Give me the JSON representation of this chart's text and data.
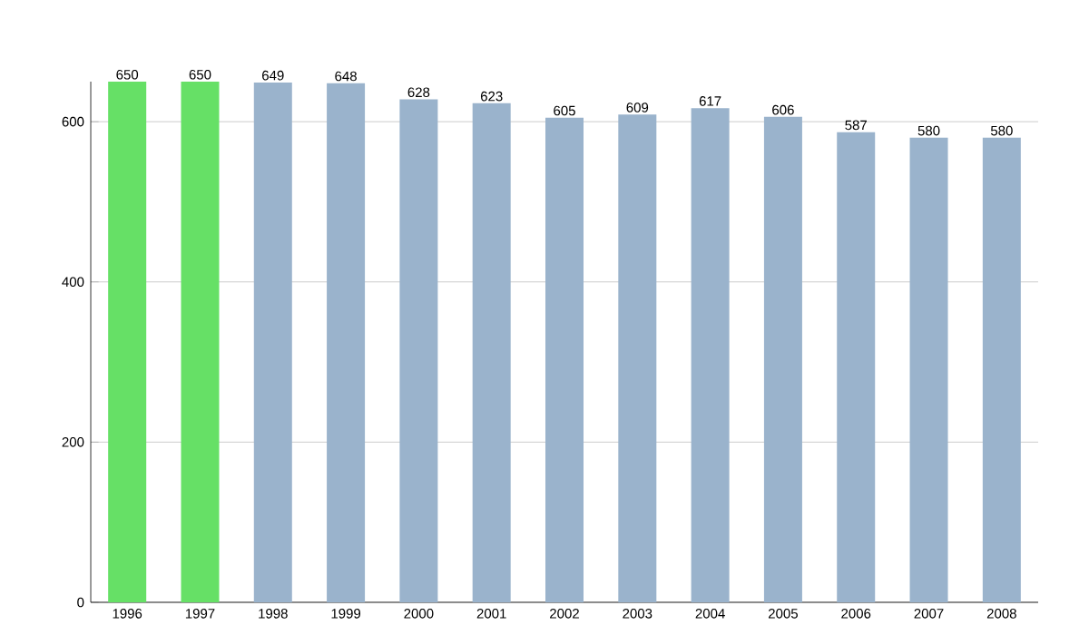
{
  "chart_data": {
    "type": "bar",
    "categories": [
      "1996",
      "1997",
      "1998",
      "1999",
      "2000",
      "2001",
      "2002",
      "2003",
      "2004",
      "2005",
      "2006",
      "2007",
      "2008"
    ],
    "values": [
      650,
      650,
      649,
      648,
      628,
      623,
      605,
      609,
      617,
      606,
      587,
      580,
      580
    ],
    "colors": [
      "#66e066",
      "#66e066",
      "#9ab3cc",
      "#9ab3cc",
      "#9ab3cc",
      "#9ab3cc",
      "#9ab3cc",
      "#9ab3cc",
      "#9ab3cc",
      "#9ab3cc",
      "#9ab3cc",
      "#9ab3cc",
      "#9ab3cc"
    ],
    "ylim": [
      0,
      650
    ],
    "yticks": [
      0,
      200,
      400,
      600
    ],
    "grid": "y",
    "data_labels": true
  }
}
